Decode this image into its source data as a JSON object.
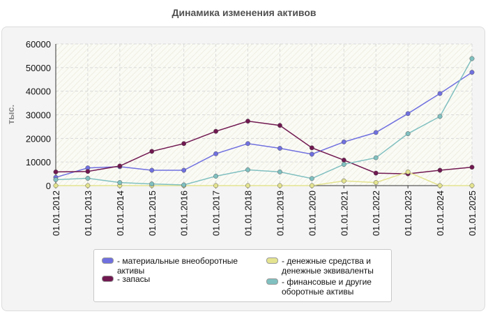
{
  "chart_data": {
    "type": "line",
    "title": "Динамика изменения активов",
    "ylabel": "тыс.",
    "xlabel": "",
    "ylim": [
      0,
      60000
    ],
    "yticks": [
      "0",
      "10000",
      "20000",
      "30000",
      "40000",
      "50000",
      "60000"
    ],
    "categories": [
      "01.01.2012",
      "01.01.2013",
      "01.01.2014",
      "01.01.2015",
      "01.01.2016",
      "01.01.2017",
      "01.01.2018",
      "01.01.2019",
      "01.01.2020",
      "01.01.2021",
      "01.01.2022",
      "01.01.2023",
      "01.01.2024",
      "01.01.2025"
    ],
    "series": [
      {
        "name": "- материальные внеоборотные активы",
        "color": "#7070e0",
        "values": [
          3500,
          7500,
          8000,
          6500,
          6500,
          13500,
          17800,
          15800,
          13300,
          18500,
          22500,
          30500,
          39000,
          48000
        ]
      },
      {
        "name": "- запасы",
        "color": "#701850",
        "values": [
          5800,
          6000,
          8300,
          14500,
          17800,
          23000,
          27300,
          25500,
          16000,
          10800,
          5300,
          5000,
          6500,
          7800
        ]
      },
      {
        "name": "- денежные средства и денежные эквиваленты",
        "color": "#e4e490",
        "values": [
          0,
          0,
          0,
          0,
          0,
          0,
          0,
          0,
          0,
          2000,
          1300,
          5800,
          0,
          0
        ]
      },
      {
        "name": "- финансовые и другие оборотные активы",
        "color": "#80c0c0",
        "values": [
          2500,
          3100,
          1300,
          700,
          300,
          4000,
          6700,
          5800,
          3000,
          9000,
          11800,
          22000,
          29300,
          53800
        ]
      }
    ],
    "legend": "bottom"
  }
}
